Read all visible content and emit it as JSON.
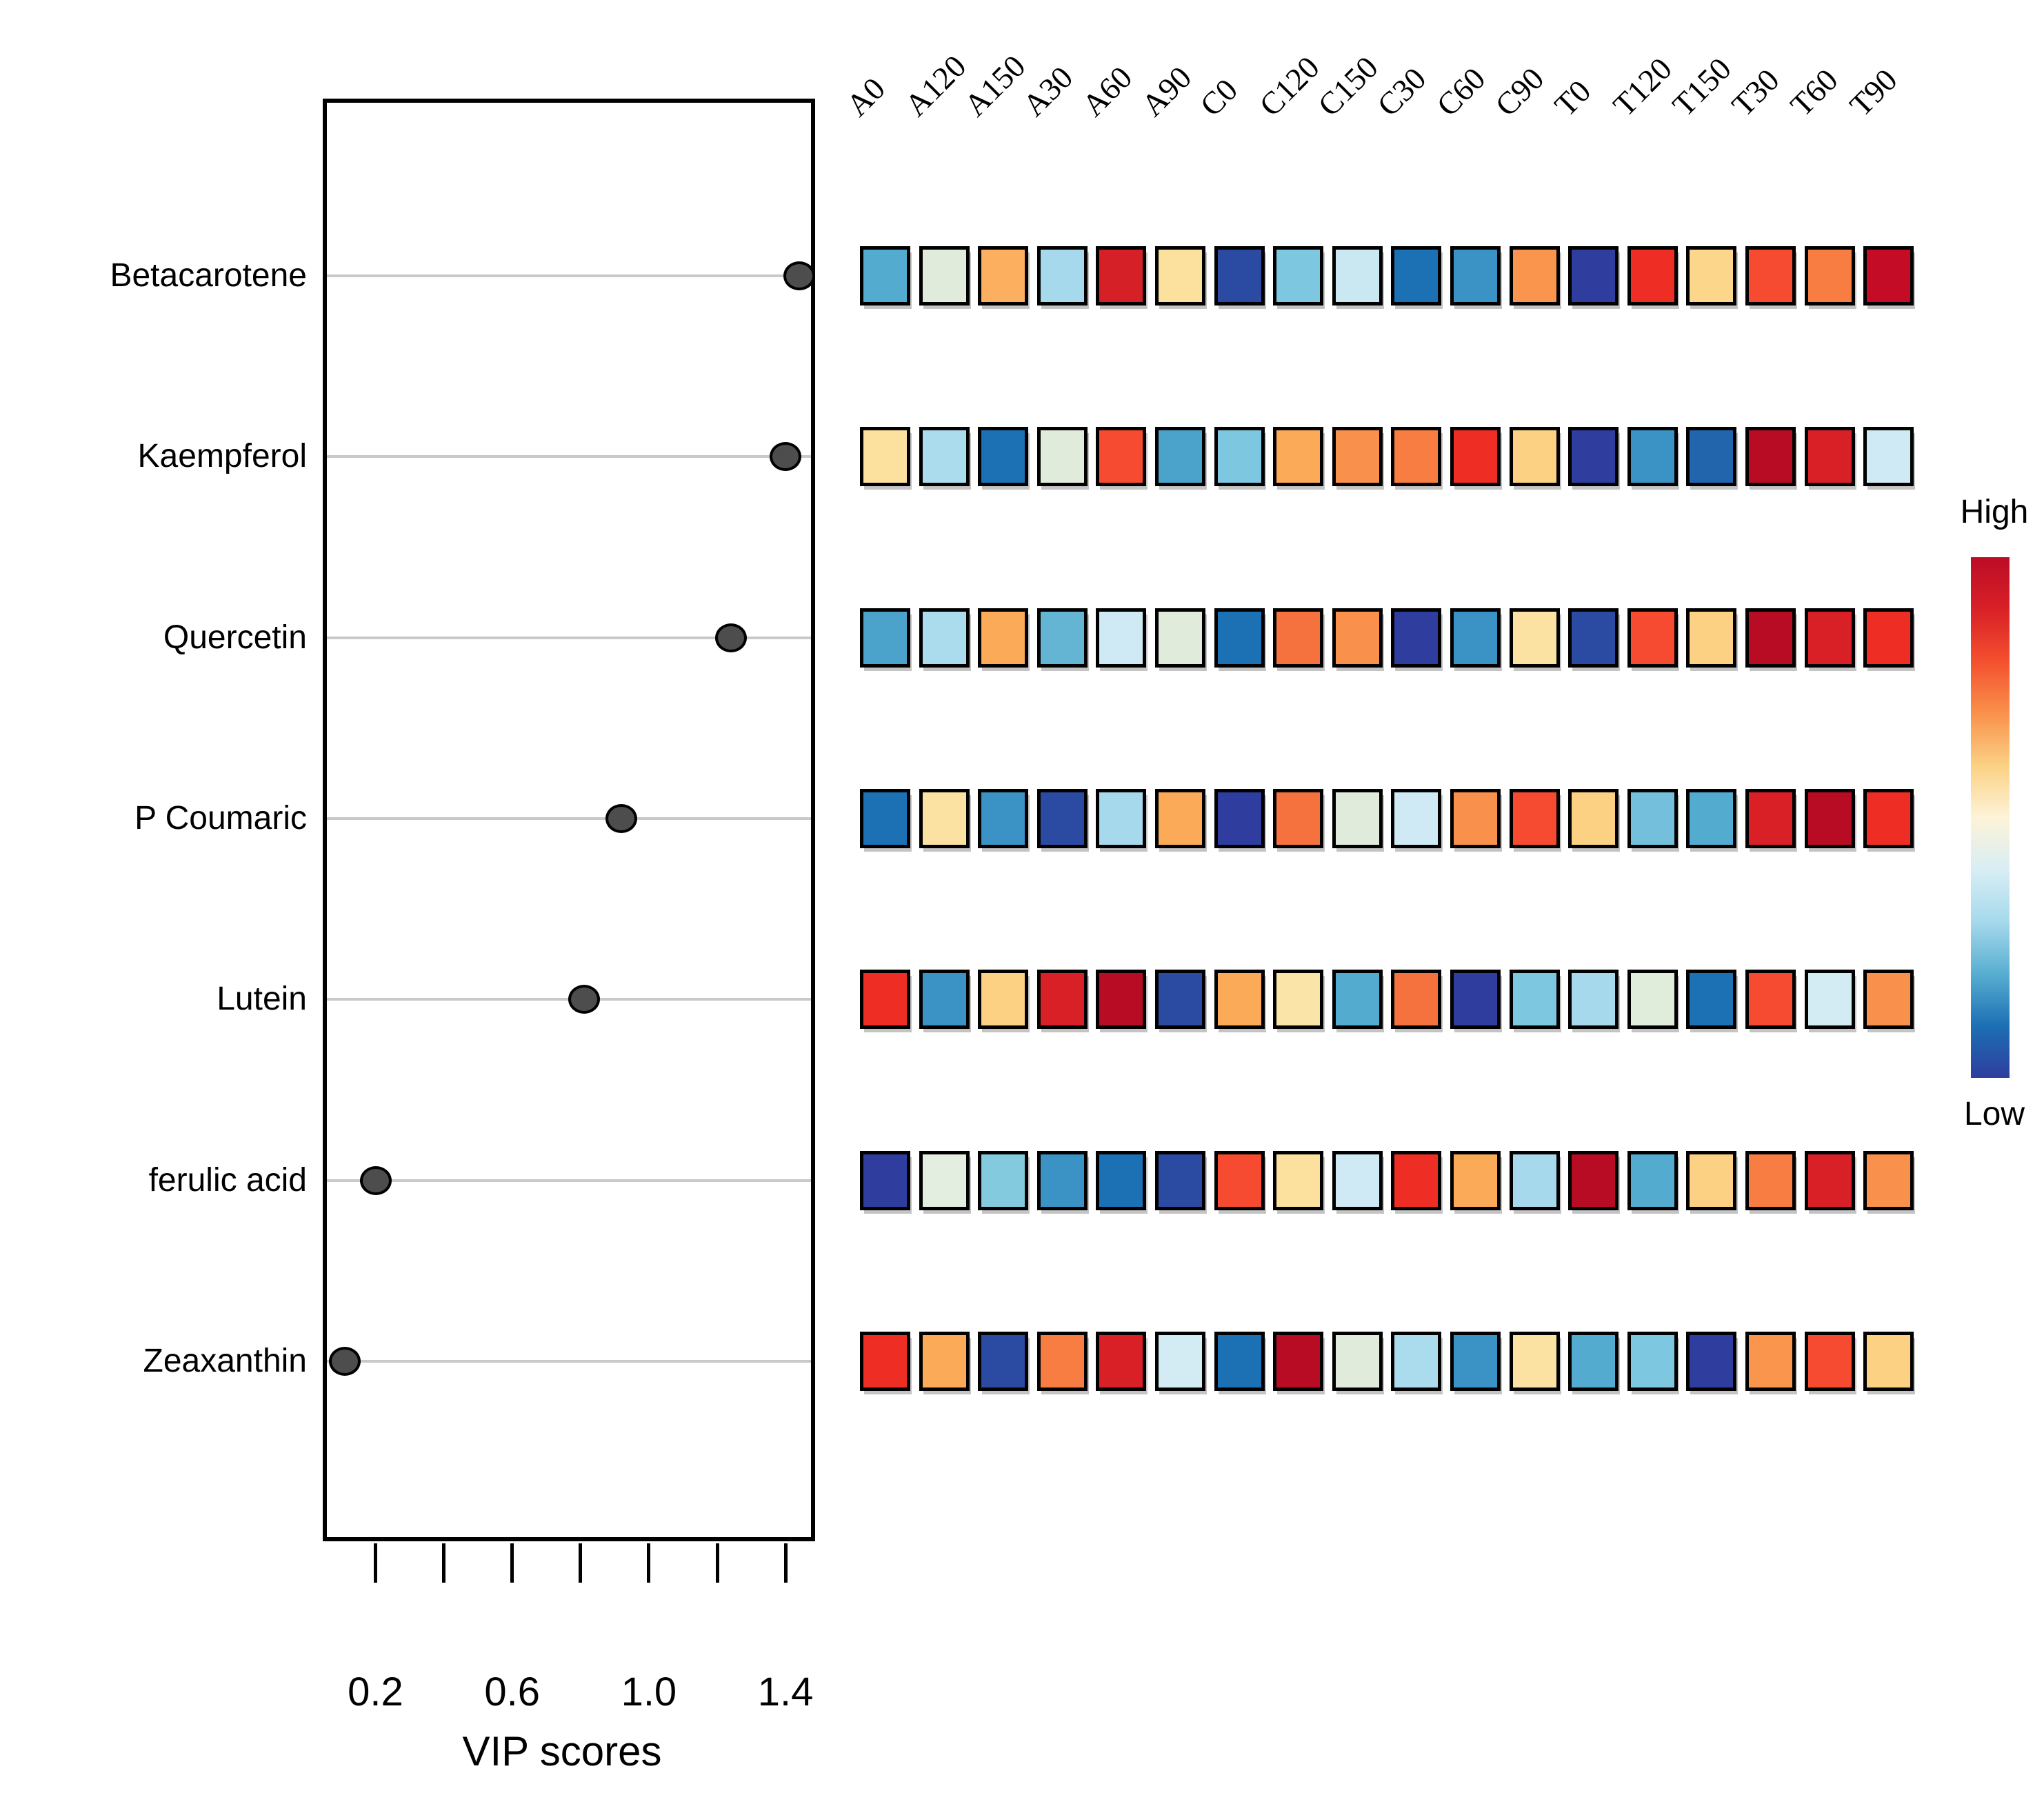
{
  "chart_data": {
    "type": "dotplot+heatmap",
    "xlabel": "VIP scores",
    "xlim": [
      0.05,
      1.5
    ],
    "x_ticks": [
      {
        "v": 0.2,
        "label": "0.2"
      },
      {
        "v": 0.4,
        "label": ""
      },
      {
        "v": 0.6,
        "label": "0.6"
      },
      {
        "v": 0.8,
        "label": ""
      },
      {
        "v": 1.0,
        "label": "1.0"
      },
      {
        "v": 1.2,
        "label": ""
      },
      {
        "v": 1.4,
        "label": "1.4"
      }
    ],
    "features": [
      "Betacarotene",
      "Kaempferol",
      "Quercetin",
      "P Coumaric",
      "Lutein",
      "ferulic acid",
      "Zeaxanthin"
    ],
    "vip_scores": [
      1.44,
      1.4,
      1.24,
      0.92,
      0.81,
      0.2,
      0.11
    ],
    "samples": [
      "A0",
      "A120",
      "A150",
      "A30",
      "A60",
      "A90",
      "C0",
      "C120",
      "C150",
      "C30",
      "C60",
      "C90",
      "T0",
      "T120",
      "T150",
      "T30",
      "T60",
      "T90"
    ],
    "heatmap_colors": [
      [
        "#53abcf",
        "#e1ebdc",
        "#fbaf5f",
        "#a6d9ec",
        "#d62027",
        "#fbe09e",
        "#2b4ba3",
        "#7ec7e0",
        "#c9e8f2",
        "#1c70b4",
        "#3b92c4",
        "#f9954c",
        "#2e3d9e",
        "#ee2e24",
        "#fcd68a",
        "#f74b31",
        "#f87d43",
        "#c40c26"
      ],
      [
        "#fbe09e",
        "#abdcee",
        "#1c70b4",
        "#e1ebdc",
        "#f74b31",
        "#4ba2ca",
        "#7ec7e0",
        "#fbaa58",
        "#f9914c",
        "#f87d43",
        "#ee2e24",
        "#fcd184",
        "#2e3d9e",
        "#3b92c4",
        "#2265ad",
        "#b80c25",
        "#d92027",
        "#cfeaf4"
      ],
      [
        "#4ba2ca",
        "#abdcee",
        "#fbaa58",
        "#64b4d4",
        "#cfeaf4",
        "#e1ebdc",
        "#1c70b4",
        "#f5713e",
        "#f9914c",
        "#2e3d9e",
        "#3b92c4",
        "#fbe2a2",
        "#2b4ba3",
        "#f74b31",
        "#fcd184",
        "#b80c25",
        "#d92027",
        "#ee2e24"
      ],
      [
        "#1c70b4",
        "#fbe2a2",
        "#3b92c4",
        "#2b4ba3",
        "#a6d9ec",
        "#fbaa58",
        "#2e3d9e",
        "#f5713e",
        "#e1ebdc",
        "#cfeaf4",
        "#f9914c",
        "#f74b31",
        "#fcd184",
        "#74c0dc",
        "#53abcf",
        "#d92027",
        "#b80c25",
        "#ee2e24"
      ],
      [
        "#ee2e24",
        "#3b92c4",
        "#fcd184",
        "#d92027",
        "#b80c25",
        "#2b4ba3",
        "#fbaa58",
        "#fbe4a7",
        "#53abcf",
        "#f5713e",
        "#2e3d9e",
        "#7ec7e0",
        "#a6d9ec",
        "#e0edda",
        "#1c70b4",
        "#f74b31",
        "#d3ecf4",
        "#f9914c"
      ],
      [
        "#2e3d9e",
        "#e3eee1",
        "#84cade",
        "#3b92c4",
        "#1c70b4",
        "#2b4ba3",
        "#f74b31",
        "#fbe09e",
        "#cfeaf4",
        "#ee2e24",
        "#fbaa58",
        "#a6d9ec",
        "#b80c25",
        "#53abcf",
        "#fcd184",
        "#f87d43",
        "#d92027",
        "#f9914c"
      ],
      [
        "#ee2e24",
        "#fbaa58",
        "#2b4ba3",
        "#f87d43",
        "#d92027",
        "#d3ecf4",
        "#1c70b4",
        "#b80c25",
        "#e1ebdc",
        "#abdcee",
        "#3b92c4",
        "#fbe2a2",
        "#53abcf",
        "#7ec7e0",
        "#2e3d9e",
        "#f9954c",
        "#f74b31",
        "#fcd184"
      ]
    ],
    "legend": {
      "high": "High",
      "low": "Low",
      "gradient_top_to_bottom": [
        "#bb0d26",
        "#d92027",
        "#f4502e",
        "#f9914c",
        "#fbd184",
        "#fdf3d7",
        "#d8eef5",
        "#a6d9ec",
        "#58aed0",
        "#1c70b4",
        "#2e3d9e"
      ]
    },
    "layout_hints": {
      "grid": "horizontal-per-feature",
      "legend_position": "right",
      "column_labels_rotation_deg": 45
    }
  }
}
